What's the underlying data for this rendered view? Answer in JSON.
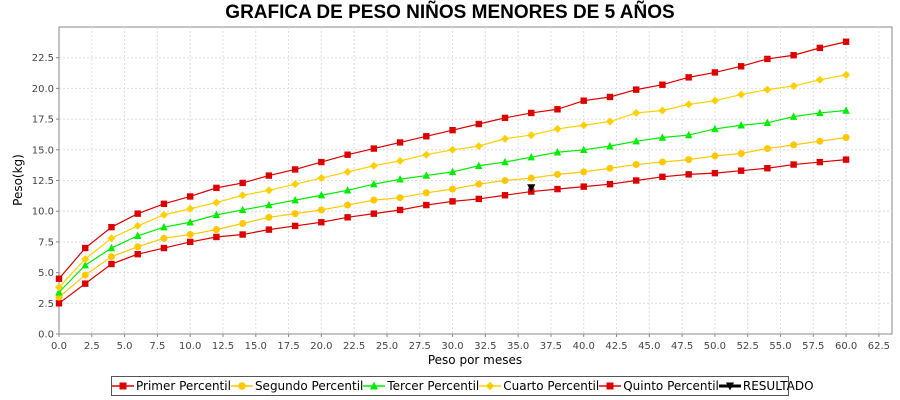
{
  "chart_data": {
    "type": "line",
    "title": "GRAFICA DE PESO NIÑOS MENORES DE 5 AÑOS",
    "xlabel": "Peso por meses",
    "ylabel": "Peso(kg)",
    "xlim": [
      0,
      63.5
    ],
    "ylim": [
      0,
      25
    ],
    "x_ticks": [
      "0.0",
      "2.5",
      "5.0",
      "7.5",
      "10.0",
      "12.5",
      "15.0",
      "17.5",
      "20.0",
      "22.5",
      "25.0",
      "27.5",
      "30.0",
      "32.5",
      "35.0",
      "37.5",
      "40.0",
      "42.5",
      "45.0",
      "47.5",
      "50.0",
      "52.5",
      "55.0",
      "57.5",
      "60.0",
      "62.5"
    ],
    "y_ticks": [
      "0.0",
      "2.5",
      "5.0",
      "7.5",
      "10.0",
      "12.5",
      "15.0",
      "17.5",
      "20.0",
      "22.5"
    ],
    "grid": true,
    "legend_position": "bottom",
    "x": [
      0,
      2,
      4,
      6,
      8,
      10,
      12,
      14,
      16,
      18,
      20,
      22,
      24,
      26,
      28,
      30,
      32,
      34,
      36,
      38,
      40,
      42,
      44,
      46,
      48,
      50,
      52,
      54,
      56,
      58,
      60
    ],
    "series": [
      {
        "name": "Primer Percentil",
        "color": "#dd0000",
        "marker": "square",
        "values": [
          2.5,
          4.1,
          5.7,
          6.5,
          7.0,
          7.5,
          7.9,
          8.1,
          8.5,
          8.8,
          9.1,
          9.5,
          9.8,
          10.1,
          10.5,
          10.8,
          11.0,
          11.3,
          11.6,
          11.8,
          12.0,
          12.2,
          12.5,
          12.8,
          13.0,
          13.1,
          13.3,
          13.5,
          13.8,
          14.0,
          14.2
        ]
      },
      {
        "name": "Segundo Percentil",
        "color": "#ffc800",
        "marker": "circle",
        "values": [
          3.0,
          4.8,
          6.3,
          7.1,
          7.8,
          8.1,
          8.5,
          9.0,
          9.5,
          9.8,
          10.1,
          10.5,
          10.9,
          11.1,
          11.5,
          11.8,
          12.2,
          12.5,
          12.7,
          13.0,
          13.2,
          13.5,
          13.8,
          14.0,
          14.2,
          14.5,
          14.7,
          15.1,
          15.4,
          15.7,
          16.0
        ]
      },
      {
        "name": "Tercer Percentil",
        "color": "#00ee00",
        "marker": "triangle",
        "values": [
          3.4,
          5.6,
          7.0,
          8.0,
          8.7,
          9.1,
          9.7,
          10.1,
          10.5,
          10.9,
          11.3,
          11.7,
          12.2,
          12.6,
          12.9,
          13.2,
          13.7,
          14.0,
          14.4,
          14.8,
          15.0,
          15.3,
          15.7,
          16.0,
          16.2,
          16.7,
          17.0,
          17.2,
          17.7,
          18.0,
          18.2
        ]
      },
      {
        "name": "Cuarto Percentil",
        "color": "#ffd000",
        "marker": "diamond",
        "values": [
          3.8,
          6.1,
          7.8,
          8.8,
          9.7,
          10.2,
          10.7,
          11.3,
          11.7,
          12.2,
          12.7,
          13.2,
          13.7,
          14.1,
          14.6,
          15.0,
          15.3,
          15.9,
          16.2,
          16.7,
          17.0,
          17.3,
          18.0,
          18.2,
          18.7,
          19.0,
          19.5,
          19.9,
          20.2,
          20.7,
          21.1
        ]
      },
      {
        "name": "Quinto Percentil",
        "color": "#dd0000",
        "marker": "square",
        "values": [
          4.5,
          7.0,
          8.7,
          9.8,
          10.6,
          11.2,
          11.9,
          12.3,
          12.9,
          13.4,
          14.0,
          14.6,
          15.1,
          15.6,
          16.1,
          16.6,
          17.1,
          17.6,
          18.0,
          18.3,
          19.0,
          19.3,
          19.9,
          20.3,
          20.9,
          21.3,
          21.8,
          22.4,
          22.7,
          23.3,
          23.8
        ]
      },
      {
        "name": "RESULTADO",
        "color": "#000000",
        "marker": "triangle-down",
        "points": [
          [
            36,
            11.9
          ]
        ]
      }
    ]
  }
}
